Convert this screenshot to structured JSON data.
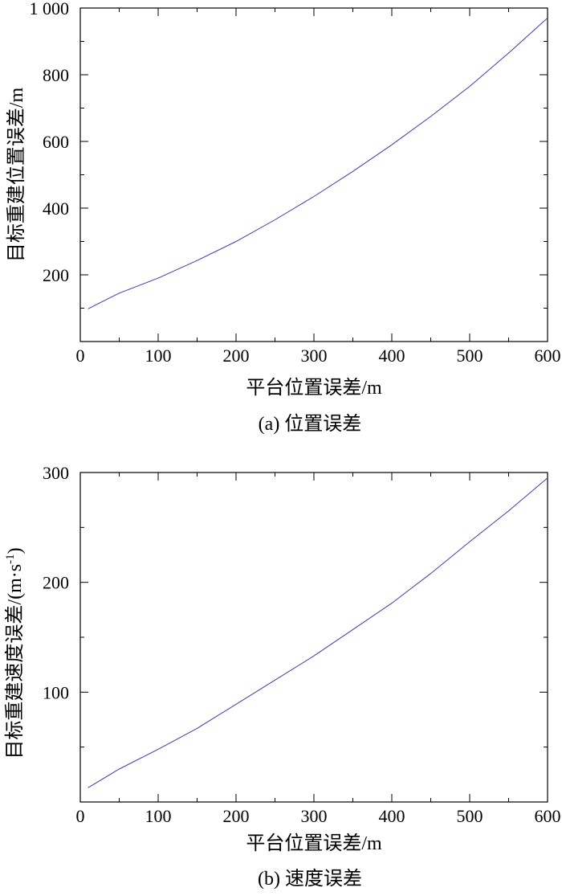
{
  "chart_data": [
    {
      "type": "line",
      "caption": "(a) 位置误差",
      "xlabel": "平台位置误差/m",
      "ylabel": "目标重建位置误差/m",
      "xlim": [
        0,
        600
      ],
      "ylim": [
        0,
        1000
      ],
      "xticks": [
        0,
        100,
        200,
        300,
        400,
        500,
        600
      ],
      "xtick_labels": [
        "0",
        "100",
        "200",
        "300",
        "400",
        "500",
        "600"
      ],
      "yticks": [
        200,
        400,
        600,
        800,
        1000
      ],
      "ytick_labels": [
        "200",
        "400",
        "600",
        "800",
        "1 000"
      ],
      "grid": false,
      "color": "#3b3fa8",
      "series": [
        {
          "x": [
            10,
            50,
            100,
            150,
            200,
            250,
            300,
            350,
            400,
            450,
            500,
            550,
            600
          ],
          "y": [
            98,
            145,
            190,
            243,
            300,
            365,
            435,
            510,
            590,
            675,
            765,
            865,
            970
          ]
        }
      ]
    },
    {
      "type": "line",
      "caption": "(b) 速度误差",
      "xlabel": "平台位置误差/m",
      "ylabel": "目标重建速度误差/(m·s",
      "ylabel_sup": "-1",
      "ylabel_tail": ")",
      "xlim": [
        0,
        600
      ],
      "ylim": [
        0,
        300
      ],
      "xticks": [
        0,
        100,
        200,
        300,
        400,
        500,
        600
      ],
      "xtick_labels": [
        "0",
        "100",
        "200",
        "300",
        "400",
        "500",
        "600"
      ],
      "yticks": [
        100,
        200,
        300
      ],
      "ytick_labels": [
        "100",
        "200",
        "300"
      ],
      "grid": false,
      "color": "#3b3fa8",
      "series": [
        {
          "x": [
            10,
            50,
            100,
            150,
            200,
            250,
            300,
            350,
            400,
            450,
            500,
            550,
            600
          ],
          "y": [
            13,
            30,
            48,
            67,
            89,
            111,
            133,
            157,
            181,
            208,
            237,
            265,
            295
          ]
        }
      ]
    }
  ]
}
